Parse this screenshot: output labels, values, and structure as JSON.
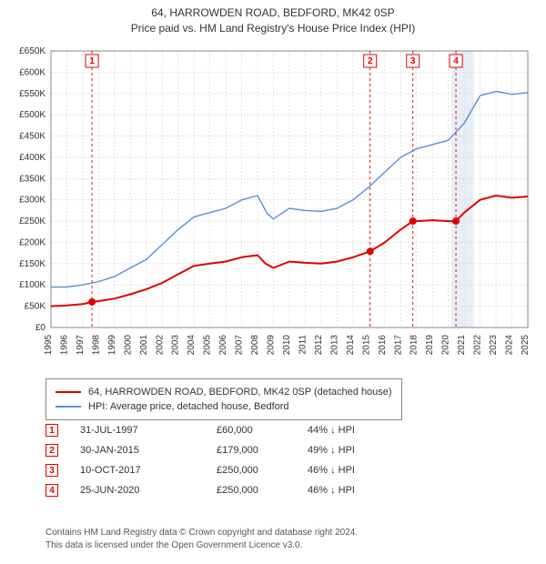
{
  "title": {
    "line1": "64, HARROWDEN ROAD, BEDFORD, MK42 0SP",
    "line2": "Price paid vs. HM Land Registry's House Price Index (HPI)"
  },
  "chart": {
    "type": "line",
    "background_color": "#ffffff",
    "plot_border_color": "#888888",
    "grid_color": "#d0d0d0",
    "grid_dash": "2,2",
    "x_years": [
      1995,
      1996,
      1997,
      1998,
      1999,
      2000,
      2001,
      2002,
      2003,
      2004,
      2005,
      2006,
      2007,
      2008,
      2009,
      2010,
      2011,
      2012,
      2013,
      2014,
      2015,
      2016,
      2017,
      2018,
      2019,
      2020,
      2021,
      2022,
      2023,
      2024,
      2025
    ],
    "y_min": 0,
    "y_max": 650000,
    "y_tick_step": 50000,
    "y_tick_labels": [
      "£0",
      "£50K",
      "£100K",
      "£150K",
      "£200K",
      "£250K",
      "£300K",
      "£350K",
      "£400K",
      "£450K",
      "£500K",
      "£550K",
      "£600K",
      "£650K"
    ],
    "x_label_fontsize": 10,
    "y_label_fontsize": 10,
    "shaded_region": {
      "x_from": 2020.2,
      "x_to": 2021.6,
      "fill": "#e8eef7"
    },
    "series": [
      {
        "name": "property",
        "color": "#e00000",
        "width": 2,
        "points": [
          [
            1995.0,
            50000
          ],
          [
            1996.0,
            52000
          ],
          [
            1997.0,
            55000
          ],
          [
            1997.58,
            60000
          ],
          [
            1998.0,
            62000
          ],
          [
            1999.0,
            68000
          ],
          [
            2000.0,
            78000
          ],
          [
            2001.0,
            90000
          ],
          [
            2002.0,
            105000
          ],
          [
            2003.0,
            125000
          ],
          [
            2004.0,
            145000
          ],
          [
            2005.0,
            150000
          ],
          [
            2006.0,
            155000
          ],
          [
            2007.0,
            165000
          ],
          [
            2008.0,
            170000
          ],
          [
            2008.5,
            150000
          ],
          [
            2009.0,
            140000
          ],
          [
            2010.0,
            155000
          ],
          [
            2011.0,
            152000
          ],
          [
            2012.0,
            150000
          ],
          [
            2013.0,
            155000
          ],
          [
            2014.0,
            165000
          ],
          [
            2015.0,
            178000
          ],
          [
            2015.08,
            179000
          ],
          [
            2016.0,
            200000
          ],
          [
            2017.0,
            230000
          ],
          [
            2017.77,
            250000
          ],
          [
            2018.0,
            250000
          ],
          [
            2019.0,
            252000
          ],
          [
            2020.0,
            250000
          ],
          [
            2020.48,
            250000
          ],
          [
            2021.0,
            270000
          ],
          [
            2022.0,
            300000
          ],
          [
            2023.0,
            310000
          ],
          [
            2024.0,
            305000
          ],
          [
            2025.0,
            308000
          ]
        ]
      },
      {
        "name": "hpi",
        "color": "#5b8fd6",
        "width": 1.4,
        "points": [
          [
            1995.0,
            95000
          ],
          [
            1996.0,
            95000
          ],
          [
            1997.0,
            100000
          ],
          [
            1998.0,
            108000
          ],
          [
            1999.0,
            120000
          ],
          [
            2000.0,
            140000
          ],
          [
            2001.0,
            160000
          ],
          [
            2002.0,
            195000
          ],
          [
            2003.0,
            230000
          ],
          [
            2004.0,
            260000
          ],
          [
            2005.0,
            270000
          ],
          [
            2006.0,
            280000
          ],
          [
            2007.0,
            300000
          ],
          [
            2008.0,
            310000
          ],
          [
            2008.6,
            268000
          ],
          [
            2009.0,
            255000
          ],
          [
            2010.0,
            280000
          ],
          [
            2011.0,
            275000
          ],
          [
            2012.0,
            273000
          ],
          [
            2013.0,
            280000
          ],
          [
            2014.0,
            300000
          ],
          [
            2015.0,
            330000
          ],
          [
            2016.0,
            365000
          ],
          [
            2017.0,
            400000
          ],
          [
            2018.0,
            420000
          ],
          [
            2019.0,
            430000
          ],
          [
            2020.0,
            440000
          ],
          [
            2021.0,
            480000
          ],
          [
            2022.0,
            545000
          ],
          [
            2023.0,
            555000
          ],
          [
            2024.0,
            548000
          ],
          [
            2025.0,
            552000
          ]
        ]
      }
    ],
    "sale_markers": [
      {
        "n": "1",
        "x": 1997.58,
        "y": 60000
      },
      {
        "n": "2",
        "x": 2015.08,
        "y": 179000
      },
      {
        "n": "3",
        "x": 2017.77,
        "y": 250000
      },
      {
        "n": "4",
        "x": 2020.48,
        "y": 250000
      }
    ],
    "sale_marker_line_color": "#e00000",
    "sale_marker_line_dash": "3,3",
    "sale_point_fill": "#e00000",
    "sale_point_radius": 4
  },
  "legend": {
    "rows": [
      {
        "color": "#e00000",
        "label": "64, HARROWDEN ROAD, BEDFORD, MK42 0SP (detached house)"
      },
      {
        "color": "#5b8fd6",
        "label": "HPI: Average price, detached house, Bedford"
      }
    ]
  },
  "sales": [
    {
      "n": "1",
      "date": "31-JUL-1997",
      "price": "£60,000",
      "delta": "44% ↓ HPI"
    },
    {
      "n": "2",
      "date": "30-JAN-2015",
      "price": "£179,000",
      "delta": "49% ↓ HPI"
    },
    {
      "n": "3",
      "date": "10-OCT-2017",
      "price": "£250,000",
      "delta": "46% ↓ HPI"
    },
    {
      "n": "4",
      "date": "25-JUN-2020",
      "price": "£250,000",
      "delta": "46% ↓ HPI"
    }
  ],
  "footer": {
    "line1": "Contains HM Land Registry data © Crown copyright and database right 2024.",
    "line2": "This data is licensed under the Open Government Licence v3.0."
  }
}
